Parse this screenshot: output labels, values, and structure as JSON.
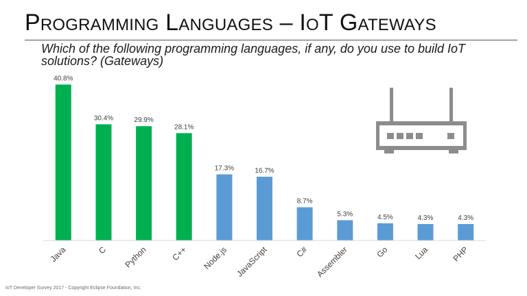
{
  "slide": {
    "title": "Programming Languages – IoT Gateways",
    "question": "Which of the following programming languages, if any, do you use to build IoT solutions? (Gateways)",
    "footer": "IoT Developer Survey 2017 - Copyright Eclipse Foundation, Inc.",
    "icon": "router-icon"
  },
  "colors": {
    "highlight": "#00b050",
    "regular": "#5b9bd5",
    "icon": "#8c8c8c"
  },
  "chart_data": {
    "type": "bar",
    "title": "",
    "xlabel": "",
    "ylabel": "",
    "ylim": [
      0,
      45
    ],
    "grid": false,
    "legend": "none",
    "value_suffix": "%",
    "categories": [
      "Java",
      "C",
      "Python",
      "C++",
      "Node.js",
      "JavaScript",
      "C#",
      "Assembler",
      "Go",
      "Lua",
      "PHP"
    ],
    "values": [
      40.8,
      30.4,
      29.9,
      28.1,
      17.3,
      16.7,
      8.7,
      5.3,
      4.5,
      4.3,
      4.3
    ],
    "highlighted": [
      true,
      true,
      true,
      true,
      false,
      false,
      false,
      false,
      false,
      false,
      false
    ]
  }
}
